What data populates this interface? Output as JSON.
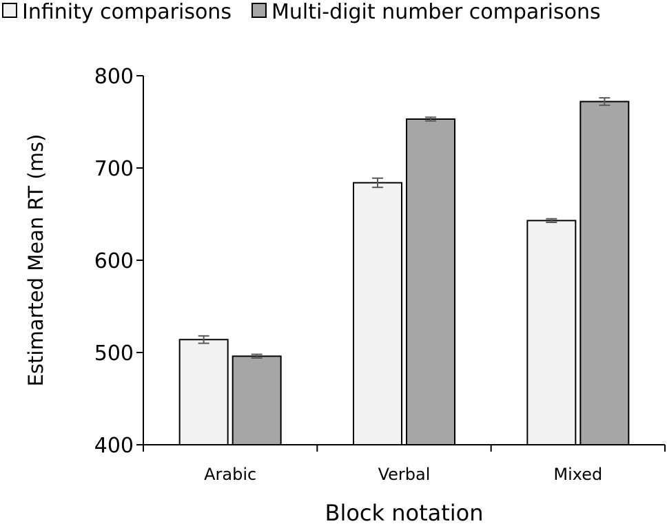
{
  "chart_data": {
    "type": "bar",
    "title": "",
    "xlabel": "Block notation",
    "ylabel": "Estimarted Mean RT (ms)",
    "ylim": [
      400,
      800
    ],
    "yticks": [
      "400",
      "500",
      "600",
      "700",
      "800"
    ],
    "categories": [
      "Arabic",
      "Verbal",
      "Mixed"
    ],
    "series": [
      {
        "name": "Infinity comparisons",
        "color": "#f2f2f2",
        "values": [
          514,
          684,
          643
        ],
        "error": [
          4,
          5,
          2
        ]
      },
      {
        "name": "Multi-digit number comparisons",
        "color": "#a6a6a6",
        "values": [
          496,
          753,
          772
        ],
        "error": [
          2,
          2,
          4
        ]
      }
    ],
    "legend": "top",
    "grid": false
  }
}
